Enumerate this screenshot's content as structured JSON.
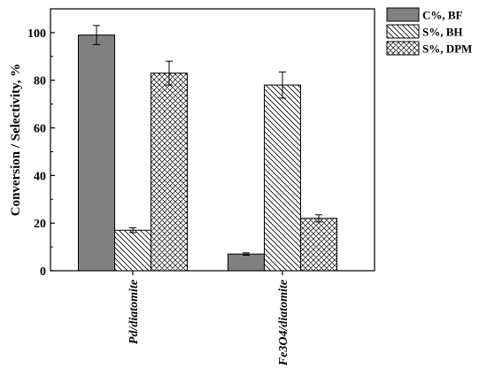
{
  "chart_data": {
    "type": "bar",
    "title": "",
    "xlabel": "",
    "ylabel": "Conversion / Selectivity, %",
    "ylim": [
      0,
      110
    ],
    "yticks": [
      0,
      20,
      40,
      60,
      80,
      100
    ],
    "categories": [
      "Pd/diatomite",
      "Fe3O4/diatomite"
    ],
    "series": [
      {
        "name": "C%, BF",
        "values": [
          99,
          7
        ],
        "errors": [
          4,
          0.5
        ],
        "fill": "solid",
        "color": "#808080"
      },
      {
        "name": "S%, BH",
        "values": [
          17,
          78
        ],
        "errors": [
          1,
          5.5
        ],
        "fill": "diagonal",
        "color": "#ffffff"
      },
      {
        "name": "S%, DPM",
        "values": [
          83,
          22
        ],
        "errors": [
          5,
          1.5
        ],
        "fill": "crosshatch",
        "color": "#ffffff"
      }
    ],
    "grid": false,
    "legend_position": "top-right (outside plot)"
  }
}
